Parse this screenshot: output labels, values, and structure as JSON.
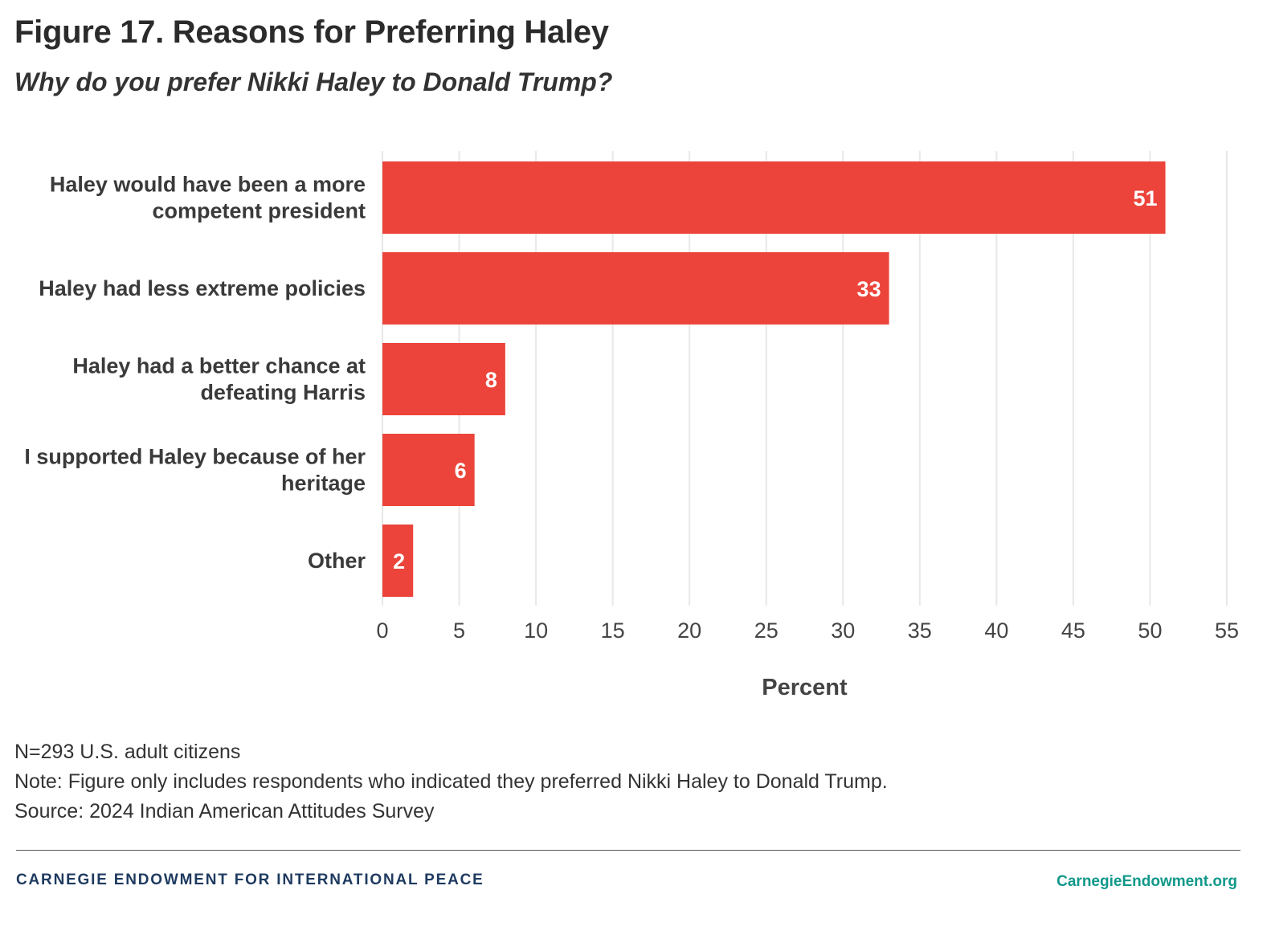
{
  "title": "Figure 17. Reasons for Preferring Haley",
  "subtitle": "Why do you prefer Nikki Haley to Donald Trump?",
  "chart_data": {
    "type": "bar",
    "orientation": "horizontal",
    "categories": [
      [
        "Haley would have been a more",
        "competent president"
      ],
      [
        "Haley had less extreme policies"
      ],
      [
        "Haley had a better chance at",
        "defeating Harris"
      ],
      [
        "I supported Haley because of her",
        "heritage"
      ],
      [
        "Other"
      ]
    ],
    "values": [
      51,
      33,
      8,
      6,
      2
    ],
    "data_labels": [
      "51",
      "33",
      "8",
      "6",
      "2"
    ],
    "xlabel": "Percent",
    "ylabel": "",
    "xlim": [
      0,
      55
    ],
    "xticks": [
      0,
      5,
      10,
      15,
      20,
      25,
      30,
      35,
      40,
      45,
      50,
      55
    ],
    "grid": true,
    "bar_color": "#ec443a",
    "grid_color": "#e8e8e8"
  },
  "notes": {
    "sample": "N=293 U.S. adult citizens",
    "note": "Note: Figure only includes respondents who indicated they preferred Nikki Haley to Donald Trump.",
    "source": "Source: 2024 Indian American Attitudes Survey"
  },
  "footer": {
    "organization": "CARNEGIE ENDOWMENT FOR INTERNATIONAL PEACE",
    "website": "CarnegieEndowment.org"
  }
}
